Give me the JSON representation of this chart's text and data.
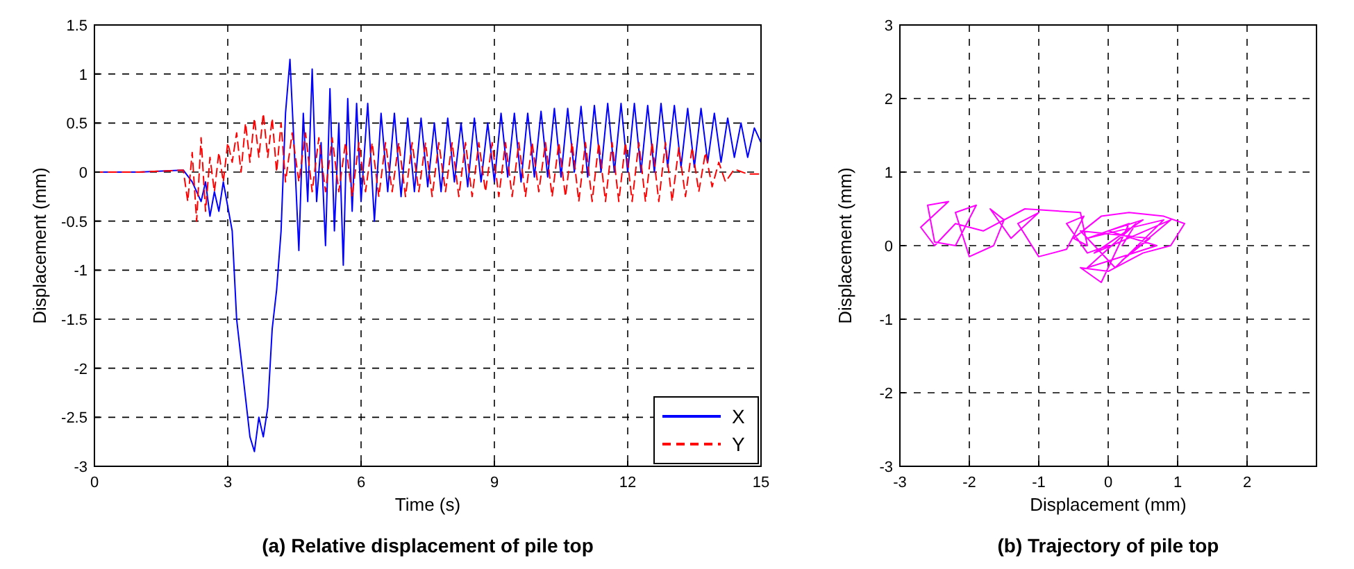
{
  "chart_data": [
    {
      "type": "line",
      "title": "(a) Relative displacement of pile top",
      "xlabel": "Time (s)",
      "ylabel": "Displacement (mm)",
      "xlim": [
        0,
        15
      ],
      "xticks": [
        0,
        3,
        6,
        9,
        12,
        15
      ],
      "ylim": [
        -3,
        1.5
      ],
      "yticks": [
        -3,
        -2.5,
        -2,
        -1.5,
        -1,
        -0.5,
        0,
        0.5,
        1,
        1.5
      ],
      "grid": true,
      "legend": "bottom right",
      "series": [
        {
          "name": "X",
          "color": "#0000ff",
          "line_style": "solid",
          "x": [
            0,
            1,
            2,
            2.2,
            2.4,
            2.5,
            2.6,
            2.7,
            2.8,
            2.9,
            3.0,
            3.1,
            3.2,
            3.3,
            3.4,
            3.5,
            3.6,
            3.7,
            3.8,
            3.9,
            4.0,
            4.1,
            4.2,
            4.3,
            4.4,
            4.5,
            4.6,
            4.7,
            4.8,
            4.9,
            5.0,
            5.1,
            5.2,
            5.3,
            5.4,
            5.5,
            5.6,
            5.7,
            5.8,
            5.9,
            6.0,
            6.15,
            6.3,
            6.45,
            6.6,
            6.75,
            6.9,
            7.05,
            7.2,
            7.35,
            7.5,
            7.65,
            7.8,
            7.95,
            8.1,
            8.25,
            8.4,
            8.55,
            8.7,
            8.85,
            9.0,
            9.15,
            9.3,
            9.45,
            9.6,
            9.75,
            9.9,
            10.05,
            10.2,
            10.35,
            10.5,
            10.65,
            10.8,
            10.95,
            11.1,
            11.25,
            11.4,
            11.55,
            11.7,
            11.85,
            12.0,
            12.15,
            12.3,
            12.45,
            12.6,
            12.75,
            12.9,
            13.05,
            13.2,
            13.35,
            13.5,
            13.65,
            13.8,
            13.95,
            14.1,
            14.25,
            14.4,
            14.55,
            14.7,
            14.85,
            15.0
          ],
          "values": [
            0,
            0,
            0.02,
            -0.1,
            -0.3,
            -0.1,
            -0.45,
            -0.2,
            -0.4,
            -0.1,
            -0.35,
            -0.6,
            -1.5,
            -1.9,
            -2.3,
            -2.7,
            -2.85,
            -2.5,
            -2.7,
            -2.4,
            -1.6,
            -1.2,
            -0.6,
            0.6,
            1.15,
            0.2,
            -0.8,
            0.6,
            -0.3,
            1.05,
            -0.3,
            0.3,
            -0.75,
            0.85,
            -0.6,
            0.5,
            -0.95,
            0.75,
            -0.4,
            0.7,
            -0.3,
            0.7,
            -0.5,
            0.6,
            -0.2,
            0.6,
            -0.25,
            0.55,
            -0.2,
            0.55,
            -0.15,
            0.5,
            -0.2,
            0.55,
            -0.1,
            0.5,
            -0.15,
            0.55,
            -0.1,
            0.5,
            -0.1,
            0.6,
            -0.05,
            0.6,
            -0.1,
            0.6,
            -0.05,
            0.62,
            -0.05,
            0.65,
            -0.05,
            0.65,
            0.0,
            0.67,
            -0.05,
            0.68,
            0.0,
            0.7,
            0.0,
            0.7,
            0.0,
            0.7,
            0.0,
            0.68,
            0.0,
            0.7,
            0.05,
            0.68,
            0.05,
            0.65,
            0.05,
            0.65,
            0.1,
            0.6,
            0.1,
            0.55,
            0.15,
            0.5,
            0.15,
            0.45,
            0.3
          ]
        },
        {
          "name": "Y",
          "color": "#ff0000",
          "line_style": "dashed",
          "x": [
            0,
            1,
            2,
            2.1,
            2.2,
            2.3,
            2.4,
            2.5,
            2.6,
            2.7,
            2.8,
            2.9,
            3.0,
            3.1,
            3.2,
            3.3,
            3.4,
            3.5,
            3.6,
            3.7,
            3.8,
            3.9,
            4.0,
            4.1,
            4.2,
            4.3,
            4.45,
            4.6,
            4.75,
            4.9,
            5.05,
            5.2,
            5.35,
            5.5,
            5.65,
            5.8,
            5.95,
            6.1,
            6.25,
            6.4,
            6.55,
            6.7,
            6.85,
            7.0,
            7.15,
            7.3,
            7.45,
            7.6,
            7.75,
            7.9,
            8.05,
            8.2,
            8.35,
            8.5,
            8.65,
            8.8,
            8.95,
            9.1,
            9.25,
            9.4,
            9.55,
            9.7,
            9.85,
            10.0,
            10.15,
            10.3,
            10.45,
            10.6,
            10.75,
            10.9,
            11.05,
            11.2,
            11.35,
            11.5,
            11.65,
            11.8,
            11.95,
            12.1,
            12.25,
            12.4,
            12.55,
            12.7,
            12.85,
            13.0,
            13.15,
            13.3,
            13.45,
            13.6,
            13.75,
            13.9,
            14.05,
            14.2,
            14.4,
            14.7,
            15.0
          ],
          "values": [
            0,
            0,
            0.02,
            -0.3,
            0.2,
            -0.5,
            0.35,
            -0.4,
            0.15,
            -0.2,
            0.2,
            -0.1,
            0.3,
            0.1,
            0.4,
            0.0,
            0.5,
            0.1,
            0.55,
            0.15,
            0.6,
            0.15,
            0.55,
            0.0,
            0.5,
            -0.1,
            0.4,
            -0.1,
            0.4,
            -0.2,
            0.35,
            -0.2,
            0.35,
            -0.2,
            0.3,
            -0.25,
            0.3,
            -0.2,
            0.3,
            -0.25,
            0.3,
            -0.2,
            0.3,
            -0.25,
            0.3,
            -0.2,
            0.3,
            -0.25,
            0.3,
            -0.2,
            0.3,
            -0.25,
            0.3,
            -0.25,
            0.3,
            -0.2,
            0.3,
            -0.25,
            0.3,
            -0.25,
            0.3,
            -0.25,
            0.3,
            -0.2,
            0.3,
            -0.25,
            0.3,
            -0.25,
            0.3,
            -0.3,
            0.3,
            -0.3,
            0.3,
            -0.3,
            0.3,
            -0.3,
            0.3,
            -0.3,
            0.3,
            -0.3,
            0.3,
            -0.3,
            0.3,
            -0.3,
            0.25,
            -0.25,
            0.25,
            -0.2,
            0.2,
            -0.15,
            0.1,
            -0.1,
            0.03,
            -0.02,
            -0.02
          ]
        }
      ]
    },
    {
      "type": "line",
      "title": "(b) Trajectory of pile top",
      "xlabel": "Displacement (mm)",
      "ylabel": "Displacement (mm)",
      "xlim": [
        -3,
        3
      ],
      "xticks": [
        -3,
        -2,
        -1,
        0,
        1,
        2
      ],
      "ylim": [
        -3,
        3
      ],
      "yticks": [
        -3,
        -2,
        -1,
        0,
        1,
        2,
        3
      ],
      "grid": true,
      "series": [
        {
          "color": "#ff00ff",
          "x": [
            0,
            -0.3,
            -0.6,
            -0.35,
            -0.6,
            -1.0,
            -1.3,
            -1.0,
            -1.4,
            -1.7,
            -1.5,
            -1.65,
            -2.0,
            -2.2,
            -1.9,
            -2.2,
            -2.5,
            -2.6,
            -2.3,
            -2.7,
            -2.5,
            -2.2,
            -1.8,
            -1.2,
            -0.4,
            -0.3,
            -0.5,
            -0.1,
            0.3,
            0.8,
            1.1,
            0.9,
            0.5,
            0.0,
            -0.4,
            -0.1,
            0.3,
            -0.3,
            0.8,
            0.1,
            -0.4,
            0.6,
            0.2,
            0.9,
            -0.2,
            0.5,
            0.0,
            0.7,
            -0.3,
            0.4,
            0.2
          ],
          "values": [
            0,
            -0.1,
            0.3,
            0.4,
            -0.05,
            -0.15,
            0.3,
            0.45,
            0.1,
            0.5,
            0.35,
            0.0,
            -0.15,
            0.45,
            0.55,
            0.0,
            0.05,
            0.55,
            0.6,
            0.25,
            0.0,
            0.3,
            0.2,
            0.5,
            0.45,
            0.0,
            0.1,
            0.4,
            0.45,
            0.4,
            0.3,
            0.0,
            -0.1,
            -0.35,
            -0.3,
            -0.5,
            0.3,
            0.1,
            0.35,
            -0.3,
            0.2,
            0.1,
            -0.2,
            0.35,
            -0.1,
            0.35,
            0.2,
            0.0,
            -0.3,
            0.3,
            0.0
          ]
        }
      ]
    }
  ]
}
